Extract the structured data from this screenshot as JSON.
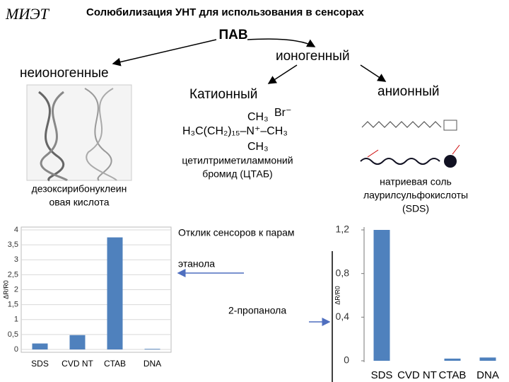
{
  "header": {
    "logo": "МИЭТ",
    "title": "Солюбилизация УНТ для использования в сенсорах"
  },
  "diagram": {
    "root": "ПАВ",
    "nonionic": "неионогенные",
    "ionic": "ионогенный",
    "cationic": "Катионный",
    "anionic": "анионный",
    "formula": {
      "top": "CH₃",
      "middle": "H₃C(CH₂)₁₅–N⁺–CH₃",
      "bottom": "CH₃",
      "ion": "Br⁻"
    },
    "dna_caption": [
      "дезоксирибонуклеин",
      "овая кислота"
    ],
    "ctab_caption": [
      "цетилтриметиламмоний",
      "бромид (ЦТАБ)"
    ],
    "sds_caption": [
      "натриевая соль",
      "лаурилсульфокислоты",
      "(SDS)"
    ]
  },
  "annotations": {
    "response": "Отклик сенсоров к парам",
    "ethanol": "этанола",
    "propanol": "2-пропанола"
  },
  "chart_data": [
    {
      "type": "bar",
      "y_label": "ΔR/R0",
      "categories": [
        "SDS",
        "CVD NT",
        "CTAB",
        "DNA"
      ],
      "values": [
        0.2,
        0.48,
        3.75,
        0.02
      ],
      "color": "#4f81bd",
      "grid": true,
      "ylim": [
        0,
        4
      ],
      "yticks": [
        0,
        {
          "value": 0.5,
          "label": "0,5"
        },
        1,
        {
          "value": 1.5,
          "label": "1,5"
        },
        2,
        {
          "value": 2.5,
          "label": "2,5"
        },
        3,
        {
          "value": 3.5,
          "label": "3,5"
        },
        4
      ]
    },
    {
      "type": "bar",
      "y_label": "ΔR/R0",
      "categories": [
        "SDS",
        "CVD NT",
        "CTAB",
        "DNA"
      ],
      "values": [
        1.2,
        0,
        0.02,
        0.03
      ],
      "color": "#4f81bd",
      "grid": false,
      "ylim": [
        0,
        1.2
      ],
      "yticks": [
        0,
        {
          "value": 0.4,
          "label": "0,4"
        },
        {
          "value": 0.8,
          "label": "0,8"
        },
        {
          "value": 1.2,
          "label": "1,2"
        }
      ]
    }
  ]
}
